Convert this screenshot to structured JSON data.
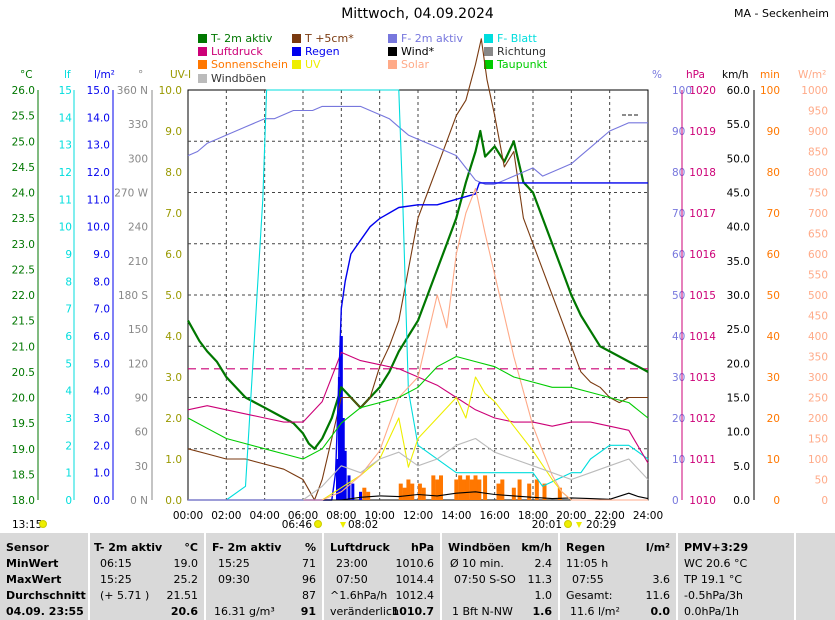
{
  "header": {
    "title": "Mittwoch, 04.09.2024",
    "station": "MA - Seckenheim"
  },
  "legend": [
    {
      "label": "T- 2m aktiv",
      "color": "#007700"
    },
    {
      "label": "T +5cm*",
      "color": "#7a3a10"
    },
    {
      "label": "F- 2m aktiv",
      "color": "#7777dd"
    },
    {
      "label": "F- Blatt",
      "color": "#00dddd"
    },
    {
      "label": "Luftdruck",
      "color": "#cc0077"
    },
    {
      "label": "Regen",
      "color": "#0000ee"
    },
    {
      "label": "Wind*",
      "color": "#000000"
    },
    {
      "label": "Richtung",
      "color": "#888888"
    },
    {
      "label": "Sonnenschein",
      "color": "#ff7700"
    },
    {
      "label": "UV",
      "color": "#eeee00"
    },
    {
      "label": "Solar",
      "color": "#ffaa88"
    },
    {
      "label": "Taupunkt",
      "color": "#00cc00"
    },
    {
      "label": "Windböen",
      "color": "#bbbbbb"
    }
  ],
  "chart_data": {
    "type": "line",
    "x_ticks": [
      "00:00",
      "02:00",
      "04:00",
      "06:00",
      "08:00",
      "10:00",
      "12:00",
      "14:00",
      "16:00",
      "18:00",
      "20:00",
      "22:00",
      "24:00"
    ],
    "axes": {
      "temp_c": {
        "unit": "°C",
        "color": "#007700",
        "ticks": [
          "26.0",
          "25.5",
          "25.0",
          "24.5",
          "24.0",
          "23.5",
          "23.0",
          "22.5",
          "22.0",
          "21.5",
          "21.0",
          "20.5",
          "20.0",
          "19.5",
          "19.0",
          "18.5",
          "18.0"
        ],
        "ylim": [
          18,
          26
        ]
      },
      "leaf": {
        "unit": "lf",
        "color": "#00dddd",
        "ticks": [
          "15",
          "14",
          "13",
          "12",
          "11",
          "10",
          "9",
          "8",
          "7",
          "6",
          "5",
          "4",
          "3",
          "2",
          "1",
          "0"
        ],
        "ylim": [
          0,
          15
        ]
      },
      "rain": {
        "unit": "l/m²",
        "color": "#0000ee",
        "ticks": [
          "15.0",
          "14.0",
          "13.0",
          "12.0",
          "11.0",
          "10.0",
          "9.0",
          "8.0",
          "7.0",
          "6.0",
          "5.0",
          "4.0",
          "3.0",
          "2.0",
          "1.0",
          "0.0"
        ],
        "ylim": [
          0,
          15
        ]
      },
      "direction": {
        "unit": "°",
        "color": "#888888",
        "ticks": [
          "360 N",
          "330",
          "300",
          "270 W",
          "240",
          "210",
          "180 S",
          "150",
          "120",
          "90",
          "60",
          "30",
          "0 N"
        ],
        "ylim": [
          0,
          360
        ]
      },
      "uv": {
        "unit": "UV-I",
        "color": "#eeee00",
        "ticks": [
          "10.0",
          "9.0",
          "8.0",
          "7.0",
          "6.0",
          "5.0",
          "4.0",
          "3.0",
          "2.0",
          "1.0",
          "0.0"
        ],
        "ylim": [
          0,
          10
        ]
      },
      "humidity": {
        "unit": "%",
        "color": "#7777dd",
        "ticks": [
          "100",
          "90",
          "80",
          "70",
          "60",
          "50",
          "40",
          "30",
          "20",
          "10",
          "0"
        ],
        "ylim": [
          0,
          100
        ]
      },
      "pressure": {
        "unit": "hPa",
        "color": "#cc0077",
        "ticks": [
          "1020",
          "1019",
          "1018",
          "1017",
          "1016",
          "1015",
          "1014",
          "1013",
          "1012",
          "1011",
          "1010"
        ],
        "ylim": [
          1010,
          1020
        ]
      },
      "wind": {
        "unit": "km/h",
        "color": "#000000",
        "ticks": [
          "60.0",
          "55.0",
          "50.0",
          "45.0",
          "40.0",
          "35.0",
          "30.0",
          "25.0",
          "20.0",
          "15.0",
          "10.0",
          "5.0",
          "0.0"
        ],
        "ylim": [
          0,
          60
        ]
      },
      "sunshine": {
        "unit": "min",
        "color": "#ff7700",
        "ticks": [
          "100",
          "90",
          "80",
          "70",
          "60",
          "50",
          "40",
          "30",
          "20",
          "10",
          "0"
        ],
        "ylim": [
          0,
          100
        ]
      },
      "solar": {
        "unit": "W/m²",
        "color": "#ffaa88",
        "ticks": [
          "1000",
          "950",
          "900",
          "850",
          "800",
          "750",
          "700",
          "650",
          "600",
          "550",
          "500",
          "450",
          "400",
          "350",
          "300",
          "250",
          "200",
          "150",
          "100",
          "50",
          "0"
        ],
        "ylim": [
          0,
          1000
        ]
      }
    },
    "series": [
      {
        "name": "T- 2m aktiv",
        "axis": "temp_c",
        "color": "#007700",
        "x": [
          0,
          0.3,
          0.6,
          1,
          1.5,
          2,
          2.5,
          3,
          3.5,
          4,
          4.5,
          5,
          5.5,
          6,
          6.3,
          6.6,
          7,
          7.5,
          8,
          8.5,
          9,
          9.5,
          10,
          10.5,
          11,
          11.5,
          12,
          12.5,
          13,
          13.5,
          14,
          14.5,
          15,
          15.25,
          15.5,
          16,
          16.5,
          17,
          17.5,
          18,
          18.5,
          19,
          19.5,
          20,
          20.5,
          21,
          21.5,
          22,
          22.5,
          23,
          23.5,
          24
        ],
        "y": [
          21.5,
          21.3,
          21.1,
          20.9,
          20.7,
          20.4,
          20.2,
          20.0,
          19.9,
          19.8,
          19.7,
          19.6,
          19.5,
          19.3,
          19.1,
          19.0,
          19.2,
          19.6,
          20.2,
          20.0,
          19.8,
          20.0,
          20.2,
          20.5,
          20.9,
          21.2,
          21.5,
          22.0,
          22.5,
          23.0,
          23.5,
          24.2,
          24.8,
          25.2,
          24.7,
          24.9,
          24.6,
          25.0,
          24.2,
          24.0,
          23.5,
          23.0,
          22.5,
          22.0,
          21.6,
          21.3,
          21.0,
          20.9,
          20.8,
          20.7,
          20.6,
          20.5
        ]
      },
      {
        "name": "T +5cm*",
        "axis": "temp_c",
        "color": "#7a3a10",
        "x": [
          0,
          1,
          2,
          3,
          4,
          5,
          5.5,
          6,
          6.3,
          6.6,
          7,
          7.5,
          8,
          8.5,
          9,
          9.5,
          10,
          10.5,
          11,
          11.5,
          12,
          12.5,
          13,
          13.5,
          14,
          14.5,
          15,
          15.3,
          15.6,
          16,
          16.5,
          17,
          17.5,
          18,
          18.5,
          19,
          19.5,
          20,
          20.5,
          21,
          21.5,
          22,
          22.5,
          23,
          23.5,
          24
        ],
        "y": [
          19.0,
          18.9,
          18.8,
          18.8,
          18.7,
          18.6,
          18.5,
          18.4,
          18.2,
          18.0,
          18.4,
          19.2,
          20.0,
          20.0,
          19.8,
          20.0,
          20.6,
          21.0,
          21.5,
          22.5,
          23.5,
          24.0,
          24.5,
          25.0,
          25.5,
          25.8,
          26.5,
          27.0,
          26.2,
          25.5,
          24.5,
          24.8,
          23.5,
          23.0,
          22.5,
          22.0,
          21.5,
          21.0,
          20.5,
          20.3,
          20.2,
          20.0,
          19.9,
          20.0,
          20.0,
          20.0
        ]
      },
      {
        "name": "F- 2m aktiv",
        "axis": "humidity",
        "color": "#7777dd",
        "x": [
          0,
          0.5,
          1,
          1.5,
          2,
          2.5,
          3,
          3.5,
          4,
          4.5,
          5,
          5.5,
          6,
          6.5,
          7,
          7.5,
          8,
          8.5,
          9,
          9.5,
          10,
          10.5,
          11,
          11.5,
          12,
          12.5,
          13,
          13.5,
          14,
          14.5,
          15,
          15.5,
          16,
          16.5,
          17,
          17.5,
          18,
          18.5,
          19,
          19.5,
          20,
          20.5,
          21,
          21.5,
          22,
          22.5,
          23,
          23.5,
          24
        ],
        "y": [
          84,
          85,
          87,
          88,
          89,
          90,
          91,
          92,
          93,
          93,
          94,
          95,
          95,
          95,
          96,
          96,
          96,
          96,
          96,
          95,
          94,
          93,
          91,
          89,
          88,
          87,
          86,
          85,
          84,
          81,
          78,
          77,
          77,
          78,
          79,
          80,
          81,
          79,
          80,
          81,
          82,
          84,
          86,
          88,
          90,
          91,
          92,
          92,
          92
        ]
      },
      {
        "name": "F- Blatt",
        "axis": "leaf",
        "color": "#00dddd",
        "x": [
          0,
          1,
          2,
          3,
          3.9,
          4.1,
          6,
          8,
          11,
          11.2,
          11.5,
          12,
          14,
          16,
          18,
          18.5,
          20,
          20.5,
          21,
          22,
          23,
          24
        ],
        "y": [
          0,
          0,
          0,
          0.5,
          11,
          15,
          15,
          15,
          15,
          11,
          4,
          2,
          1,
          1,
          1,
          0.5,
          1,
          1,
          1.5,
          2,
          2,
          1.5
        ]
      },
      {
        "name": "Luftdruck",
        "axis": "pressure",
        "color": "#cc0077",
        "x": [
          0,
          1,
          2,
          3,
          4,
          5,
          6,
          7,
          8,
          9,
          10,
          11,
          12,
          13,
          14,
          15,
          16,
          17,
          18,
          19,
          20,
          21,
          22,
          23,
          24
        ],
        "y": [
          1012.2,
          1012.3,
          1012.2,
          1012.1,
          1012.0,
          1011.9,
          1011.9,
          1012.4,
          1013.6,
          1013.4,
          1013.3,
          1013.2,
          1013.0,
          1012.8,
          1012.5,
          1012.2,
          1012.0,
          1011.9,
          1011.9,
          1011.8,
          1011.9,
          1011.9,
          1011.8,
          1011.7,
          1010.9
        ]
      },
      {
        "name": "Regen",
        "axis": "rain",
        "color": "#0000ee",
        "x": [
          0,
          7.5,
          7.7,
          7.8,
          8.0,
          8.2,
          8.5,
          9,
          9.5,
          10,
          10.5,
          11,
          12,
          13,
          14,
          15,
          15.2,
          16,
          17,
          18,
          20,
          22,
          24
        ],
        "y": [
          0,
          0,
          1,
          3,
          7,
          8,
          9,
          9.5,
          10,
          10.3,
          10.5,
          10.7,
          10.8,
          10.8,
          11,
          11.2,
          11.6,
          11.6,
          11.6,
          11.6,
          11.6,
          11.6,
          11.6
        ]
      },
      {
        "name": "Wind*",
        "axis": "wind",
        "color": "#000000",
        "x": [
          0,
          8,
          9,
          10,
          11,
          12,
          13,
          14,
          15,
          16,
          17,
          18,
          19,
          20,
          21,
          22,
          23,
          23.5,
          24
        ],
        "y": [
          0,
          0,
          0.4,
          0.6,
          0.5,
          0.8,
          0.6,
          1.0,
          1.2,
          0.8,
          0.6,
          0.4,
          0.2,
          0.3,
          0.2,
          0.1,
          1.0,
          0.5,
          0.2
        ]
      },
      {
        "name": "UV",
        "axis": "uv",
        "color": "#eeee00",
        "x": [
          0,
          7,
          8,
          9,
          10,
          11,
          11.5,
          12,
          13,
          14,
          14.5,
          15,
          15.5,
          16,
          17,
          18,
          19,
          19.5,
          20,
          24
        ],
        "y": [
          0,
          0,
          0.3,
          0.6,
          1.0,
          2.0,
          0.8,
          1.5,
          2.0,
          2.5,
          2.0,
          3.0,
          2.6,
          2.4,
          1.8,
          1.2,
          0.5,
          0.2,
          0,
          0
        ]
      },
      {
        "name": "Solar",
        "axis": "solar",
        "color": "#ffaa88",
        "x": [
          0,
          7,
          8,
          9,
          10,
          11,
          12,
          12.5,
          13,
          13.5,
          14,
          14.5,
          15,
          15.5,
          16,
          16.5,
          17,
          18,
          19,
          19.5,
          20,
          24
        ],
        "y": [
          0,
          0,
          20,
          60,
          120,
          250,
          300,
          400,
          500,
          420,
          600,
          700,
          760,
          650,
          550,
          450,
          350,
          180,
          60,
          20,
          0,
          0
        ]
      },
      {
        "name": "Taupunkt",
        "axis": "temp_c",
        "color": "#00cc00",
        "x": [
          0,
          1,
          2,
          3,
          4,
          5,
          6,
          7,
          8,
          9,
          10,
          11,
          12,
          13,
          14,
          15,
          16,
          17,
          18,
          19,
          20,
          21,
          22,
          23,
          24
        ],
        "y": [
          19.6,
          19.4,
          19.2,
          19.1,
          19.0,
          18.9,
          18.8,
          19.0,
          19.5,
          19.8,
          19.9,
          20.0,
          20.2,
          20.6,
          20.8,
          20.7,
          20.6,
          20.4,
          20.3,
          20.2,
          20.2,
          20.1,
          20.0,
          19.9,
          19.6
        ]
      },
      {
        "name": "Windböen",
        "axis": "wind",
        "color": "#bbbbbb",
        "x": [
          0,
          6,
          7,
          8,
          9,
          10,
          11,
          12,
          13,
          14,
          15,
          16,
          17,
          18,
          19,
          20,
          21,
          22,
          23,
          24
        ],
        "y": [
          0,
          0,
          2,
          5,
          4,
          6,
          7,
          5,
          6,
          8,
          9,
          7,
          6,
          5,
          4,
          3,
          4,
          5,
          6,
          3
        ]
      }
    ],
    "reference_line": {
      "name": "dashed",
      "axis": "pressure",
      "value": 1013.2,
      "color": "#cc0077"
    },
    "sunrise_sunset": {
      "sunrise": "06:46",
      "sunset": "20:01",
      "uv_start": "08:02",
      "uv_end": "20:29",
      "left_time": "13:15"
    }
  },
  "footer": {
    "sensor": {
      "header": "Sensor",
      "rows": [
        "MinWert",
        "MaxWert",
        "Durchschnitt",
        "04.09.  23:55"
      ]
    },
    "t2m": {
      "header": "T- 2m aktiv",
      "unit": "°C",
      "rows": [
        [
          "06:15",
          "19.0"
        ],
        [
          "15:25",
          "25.2"
        ],
        [
          "(+ 5.71 )",
          "21.51"
        ],
        [
          "",
          "20.6"
        ]
      ]
    },
    "f2m": {
      "header": "F- 2m aktiv",
      "unit": "%",
      "rows": [
        [
          "15:25",
          "71"
        ],
        [
          "09:30",
          "96"
        ],
        [
          "",
          "87"
        ],
        [
          "16.31 g/m³",
          "91"
        ]
      ]
    },
    "pressure": {
      "header": "Luftdruck",
      "unit": "hPa",
      "rows": [
        [
          "23:00",
          "1010.6"
        ],
        [
          "07:50",
          "1014.4"
        ],
        [
          "^1.6hPa/h",
          "1012.4"
        ],
        [
          "veränderlich",
          "1010.7"
        ]
      ]
    },
    "gusts": {
      "header": "Windböen",
      "unit": "km/h",
      "rows": [
        [
          "Ø 10 min.",
          "2.4"
        ],
        [
          "07:50  S-SO",
          "11.3"
        ],
        [
          "",
          "1.0"
        ],
        [
          "1 Bft N-NW",
          "1.6"
        ]
      ]
    },
    "rain": {
      "header": "Regen",
      "unit": "l/m²",
      "rows": [
        [
          "11:05 h",
          ""
        ],
        [
          "07:55",
          "3.6"
        ],
        [
          "Gesamt:",
          "11.6"
        ],
        [
          "11.6 l/m²",
          "0.0"
        ]
      ]
    },
    "pmv": {
      "header": "PMV+3:29",
      "rows": [
        "WC 20.6 °C",
        "TP 19.1 °C",
        "-0.5hPa/3h",
        "0.0hPa/1h"
      ]
    }
  }
}
